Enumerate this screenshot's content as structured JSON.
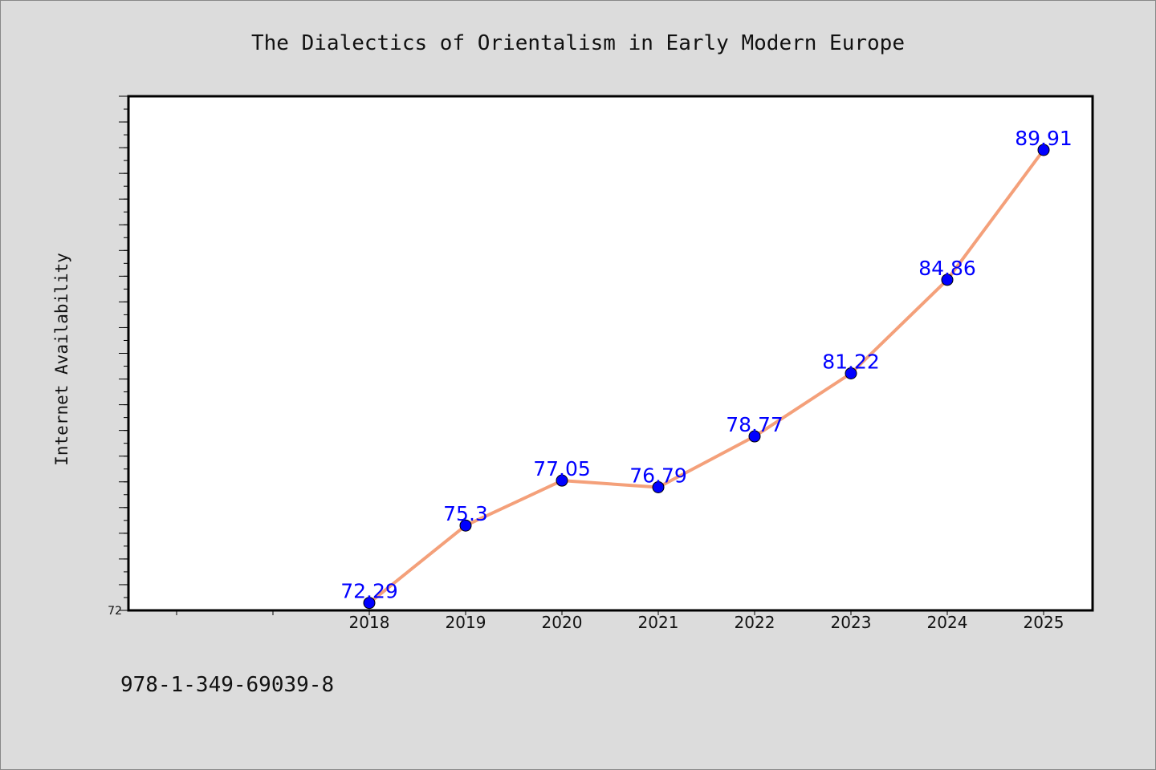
{
  "chart_data": {
    "type": "line",
    "title": "The Dialectics of Orientalism in Early Modern Europe",
    "xlabel": "",
    "ylabel": "Internet Availability",
    "x": [
      "2018",
      "2019",
      "2020",
      "2021",
      "2022",
      "2023",
      "2024",
      "2025"
    ],
    "series": [
      {
        "values": [
          72.29,
          75.3,
          77.05,
          76.79,
          78.77,
          81.22,
          84.86,
          89.91
        ],
        "labels": [
          "72.29",
          "75.3",
          "77.05",
          "76.79",
          "78.77",
          "81.22",
          "84.86",
          "89.91"
        ],
        "line_color": "#f4a07a",
        "marker_color": "#0000ff"
      }
    ],
    "ylim": [
      72,
      92
    ],
    "y_tick_labels": [
      "72"
    ],
    "grid": false,
    "legend": "none"
  },
  "footer": {
    "code": "978-1-349-69039-8"
  }
}
